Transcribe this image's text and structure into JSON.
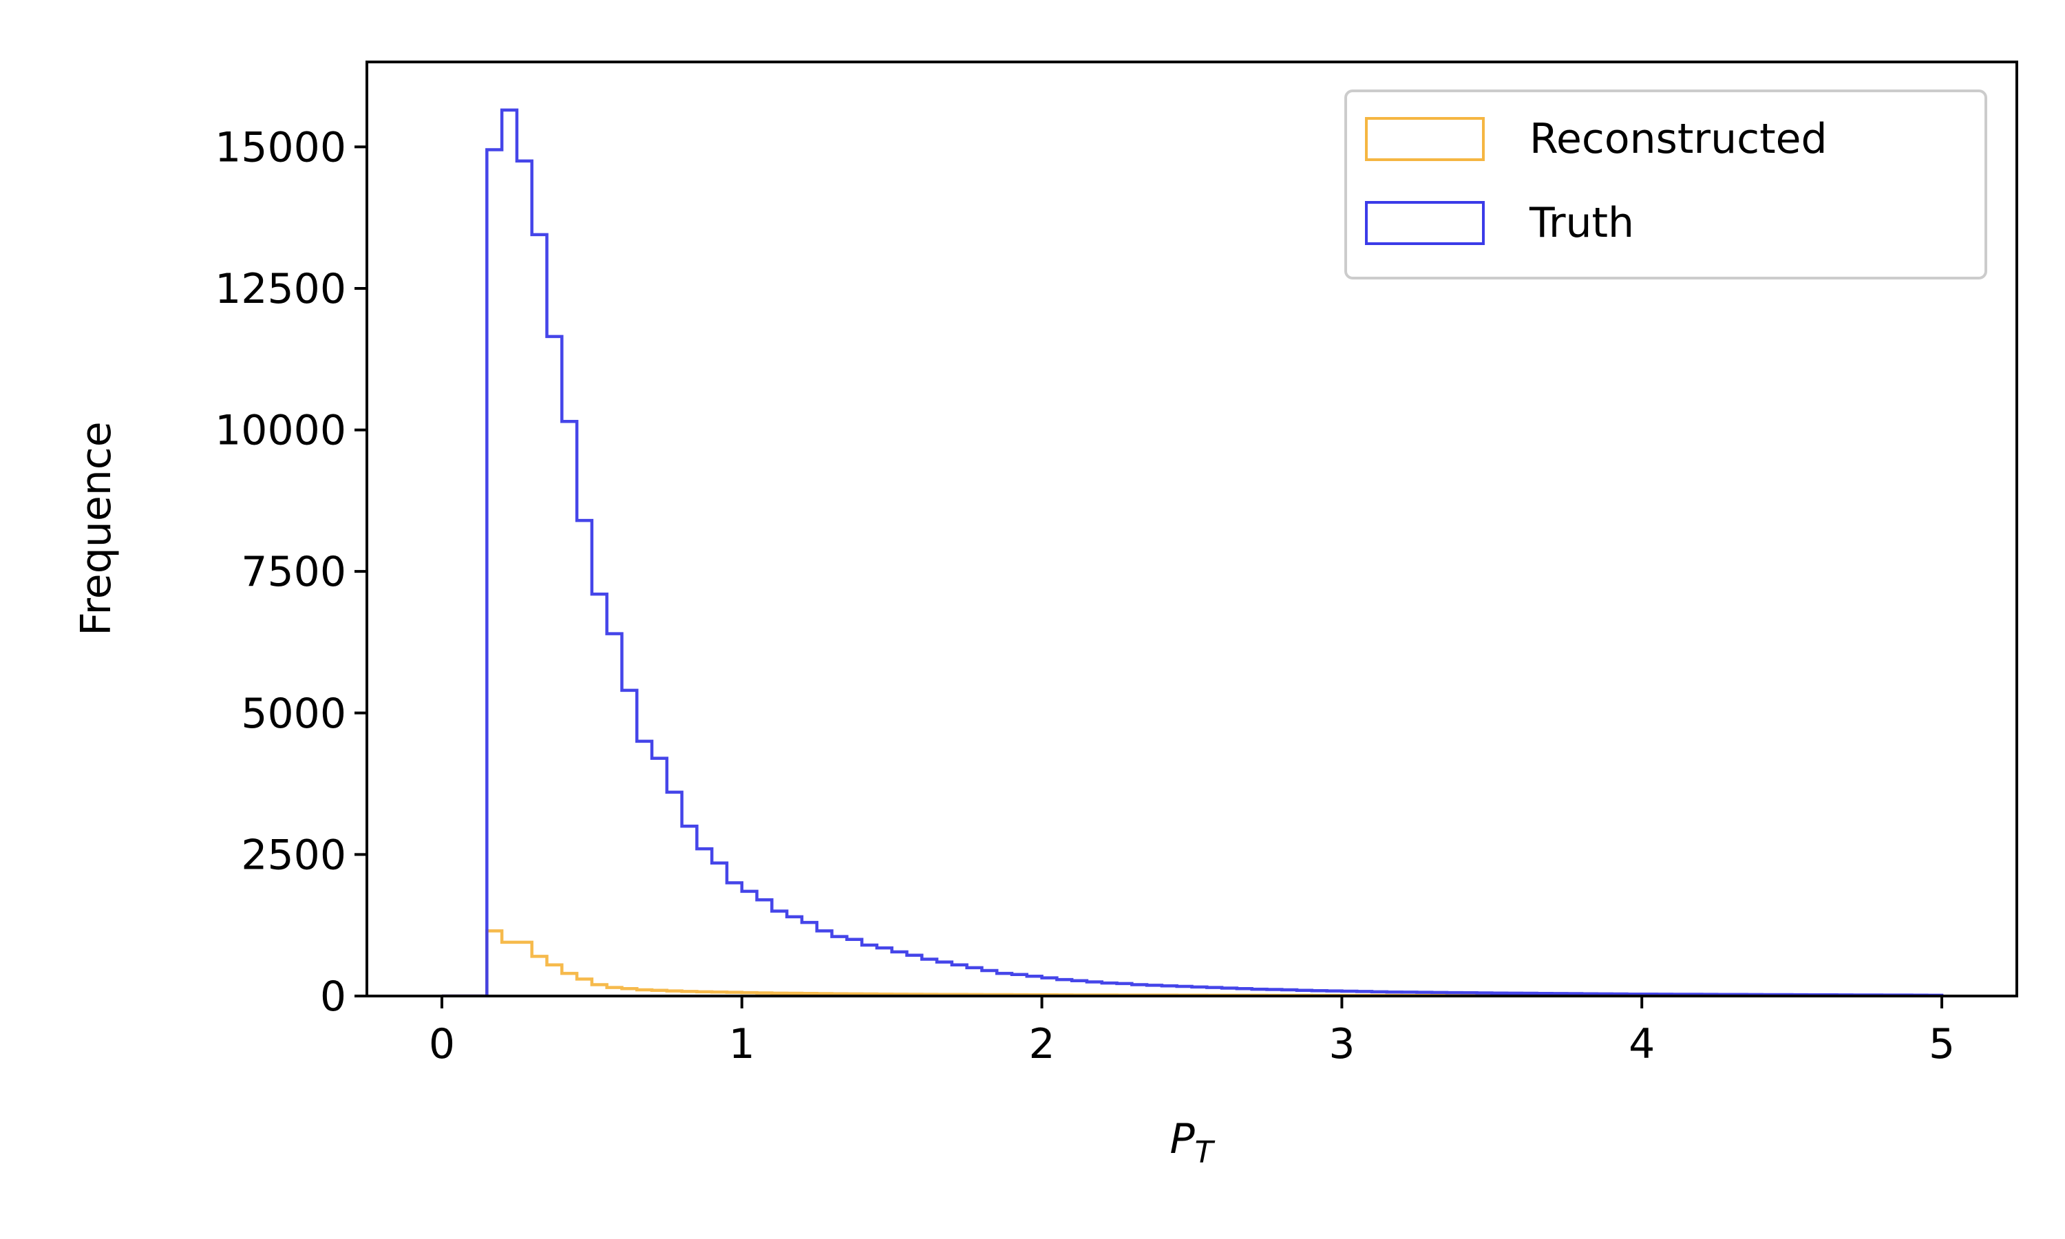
{
  "chart_data": {
    "type": "histogram",
    "xlabel": "P",
    "xlabel_subscript": "T",
    "ylabel": "Frequence",
    "xlim": [
      -0.25,
      5.25
    ],
    "ylim": [
      0,
      16500
    ],
    "xticks": [
      0,
      1,
      2,
      3,
      4,
      5
    ],
    "yticks": [
      0,
      2500,
      5000,
      7500,
      10000,
      12500,
      15000
    ],
    "grid": false,
    "legend_position": "top-right",
    "bins": {
      "start": 0,
      "end": 5,
      "width": 0.05
    },
    "series": [
      {
        "name": "Reconstructed",
        "color": "#f5b642",
        "values": [
          0,
          0,
          0,
          1150,
          950,
          950,
          700,
          550,
          400,
          300,
          200,
          150,
          130,
          110,
          100,
          90,
          80,
          75,
          70,
          65,
          60,
          55,
          50,
          48,
          45,
          43,
          40,
          38,
          36,
          34,
          32,
          30,
          29,
          28,
          27,
          26,
          25,
          24,
          23,
          22,
          21,
          20,
          19,
          18,
          18,
          17,
          17,
          16,
          16,
          15,
          15,
          14,
          14,
          13,
          13,
          12,
          12,
          12,
          11,
          11,
          11,
          10,
          10,
          10,
          9,
          9,
          9,
          8,
          8,
          8,
          8,
          7,
          7,
          7,
          7,
          6,
          6,
          6,
          6,
          6,
          5,
          5,
          5,
          5,
          5,
          5,
          4,
          4,
          4,
          4,
          4,
          4,
          4,
          3,
          3,
          3,
          3,
          3,
          3,
          3
        ]
      },
      {
        "name": "Truth",
        "color": "#3b3be8",
        "values": [
          0,
          0,
          0,
          14950,
          15650,
          14750,
          13450,
          11650,
          10150,
          8400,
          7100,
          6400,
          5400,
          4500,
          4200,
          3600,
          3000,
          2600,
          2350,
          2000,
          1850,
          1700,
          1500,
          1400,
          1300,
          1150,
          1050,
          1000,
          900,
          850,
          780,
          720,
          650,
          600,
          550,
          500,
          450,
          400,
          380,
          350,
          320,
          290,
          270,
          250,
          230,
          220,
          200,
          190,
          180,
          170,
          160,
          150,
          140,
          130,
          120,
          115,
          110,
          100,
          95,
          90,
          85,
          80,
          75,
          70,
          68,
          65,
          62,
          60,
          58,
          55,
          52,
          50,
          48,
          46,
          44,
          42,
          40,
          38,
          36,
          34,
          33,
          32,
          31,
          30,
          29,
          28,
          27,
          26,
          25,
          24,
          23,
          22,
          21,
          20,
          19,
          18,
          17,
          16,
          15,
          14
        ]
      }
    ]
  }
}
